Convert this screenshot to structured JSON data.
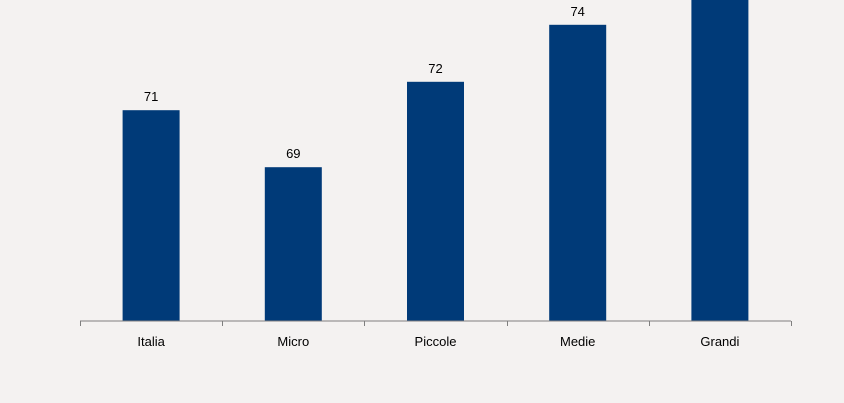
{
  "chart_data": {
    "type": "bar",
    "categories": [
      "Italia",
      "Micro",
      "Piccole",
      "Medie",
      "Grandi"
    ],
    "values": [
      71,
      69,
      72,
      74,
      75
    ],
    "title": "",
    "xlabel": "",
    "ylabel": "",
    "ylim": [
      63.6,
      75.9
    ],
    "grid": false,
    "legend": "none",
    "data_labels": true,
    "colors": {
      "bar": "#003a78",
      "axis": "#7f7f7f",
      "background": "#f4f2f1"
    }
  }
}
